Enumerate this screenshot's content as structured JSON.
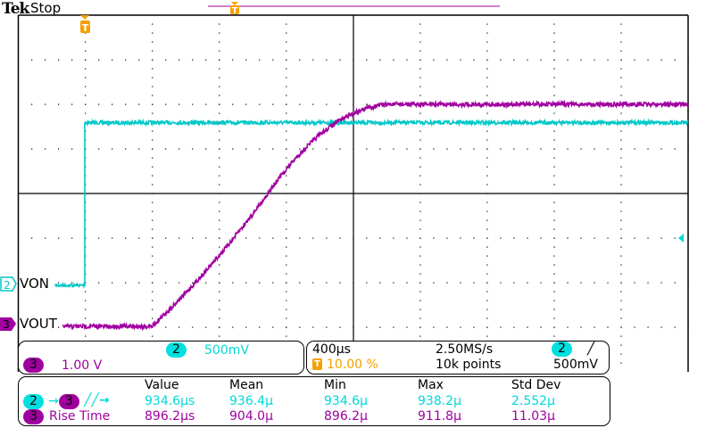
{
  "header": {
    "brand": "Tek",
    "status": "Stop"
  },
  "colors": {
    "ch2": "#00c8c8",
    "ch3": "#a000a0",
    "trigger": "#f5a000"
  },
  "channels": [
    {
      "number": "2",
      "name": "VON",
      "scale": "500mV"
    },
    {
      "number": "3",
      "name": "VOUT",
      "scale": "1.00 V"
    }
  ],
  "horizontal": {
    "timebase": "400µs",
    "sample_rate": "2.50MS/s",
    "trigger_position": "10.00 %",
    "record_length": "10k points",
    "trigger_channel": "2",
    "trigger_slope_icon": "rising-edge-icon",
    "trigger_level": "500mV"
  },
  "measurements": {
    "headers": [
      "Value",
      "Mean",
      "Min",
      "Max",
      "Std Dev"
    ],
    "rows": [
      {
        "source": "2",
        "target": "3",
        "label_icon": "delay-rising-rising-icon",
        "label": "",
        "values": [
          "934.6µs",
          "936.4µ",
          "934.6µ",
          "938.2µ",
          "2.552µ"
        ]
      },
      {
        "source": "3",
        "label": "Rise Time",
        "values": [
          "896.2µs",
          "904.0µ",
          "896.2µ",
          "911.8µ",
          "11.03µ"
        ]
      }
    ]
  }
}
